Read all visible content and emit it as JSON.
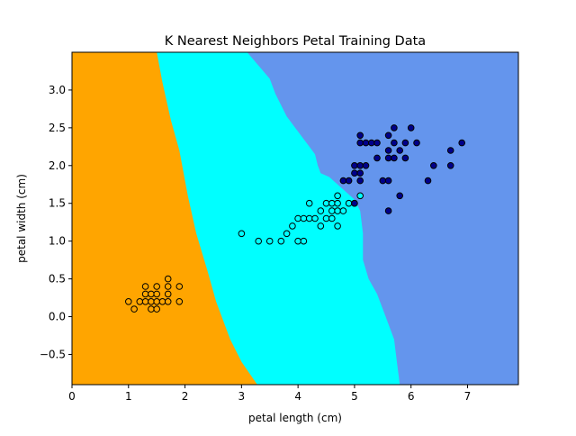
{
  "chart_data": {
    "type": "scatter",
    "title": "K Nearest Neighbors Petal Training Data",
    "xlabel": "petal length (cm)",
    "ylabel": "petal width (cm)",
    "xlim": [
      0,
      7.9
    ],
    "ylim": [
      -0.9,
      3.5
    ],
    "xticks": [
      0,
      1,
      2,
      3,
      4,
      5,
      6,
      7
    ],
    "yticks": [
      -0.5,
      0.0,
      0.5,
      1.0,
      1.5,
      2.0,
      2.5,
      3.0
    ],
    "ytick_labels": [
      "−0.5",
      "0.0",
      "0.5",
      "1.0",
      "1.5",
      "2.0",
      "2.5",
      "3.0"
    ],
    "grid": false,
    "legend": "none",
    "decision_regions": [
      {
        "class": 0,
        "color": "#FFA500",
        "boundary_to_next": [
          [
            1.5,
            3.5
          ],
          [
            1.6,
            3.1
          ],
          [
            1.75,
            2.6
          ],
          [
            1.9,
            2.2
          ],
          [
            2.05,
            1.6
          ],
          [
            2.2,
            1.1
          ],
          [
            2.4,
            0.6
          ],
          [
            2.55,
            0.2
          ],
          [
            2.8,
            -0.3
          ],
          [
            3.0,
            -0.6
          ],
          [
            3.28,
            -0.9
          ]
        ]
      },
      {
        "class": 1,
        "color": "#00FFFF",
        "boundary_to_next": [
          [
            3.1,
            3.5
          ],
          [
            3.5,
            3.15
          ],
          [
            3.6,
            2.95
          ],
          [
            3.8,
            2.65
          ],
          [
            3.95,
            2.5
          ],
          [
            4.1,
            2.35
          ],
          [
            4.2,
            2.25
          ],
          [
            4.3,
            2.15
          ],
          [
            4.35,
            2.0
          ],
          [
            4.4,
            1.9
          ],
          [
            4.55,
            1.85
          ],
          [
            4.7,
            1.75
          ],
          [
            4.85,
            1.65
          ],
          [
            5.0,
            1.55
          ],
          [
            5.1,
            1.4
          ],
          [
            5.15,
            1.1
          ],
          [
            5.15,
            0.75
          ],
          [
            5.25,
            0.5
          ],
          [
            5.4,
            0.3
          ],
          [
            5.55,
            0.0
          ],
          [
            5.7,
            -0.3
          ],
          [
            5.75,
            -0.6
          ],
          [
            5.8,
            -0.9
          ]
        ]
      },
      {
        "class": 2,
        "color": "#6495ED"
      }
    ],
    "series": [
      {
        "class": 0,
        "color": "#FFA500",
        "points": [
          [
            1.0,
            0.2
          ],
          [
            1.1,
            0.1
          ],
          [
            1.2,
            0.2
          ],
          [
            1.3,
            0.2
          ],
          [
            1.3,
            0.3
          ],
          [
            1.3,
            0.4
          ],
          [
            1.4,
            0.1
          ],
          [
            1.4,
            0.2
          ],
          [
            1.4,
            0.3
          ],
          [
            1.5,
            0.1
          ],
          [
            1.5,
            0.2
          ],
          [
            1.5,
            0.3
          ],
          [
            1.5,
            0.4
          ],
          [
            1.6,
            0.2
          ],
          [
            1.7,
            0.2
          ],
          [
            1.7,
            0.3
          ],
          [
            1.7,
            0.4
          ],
          [
            1.7,
            0.5
          ],
          [
            1.9,
            0.2
          ],
          [
            1.9,
            0.4
          ]
        ]
      },
      {
        "class": 1,
        "color": "#00FFFF",
        "points": [
          [
            3.0,
            1.1
          ],
          [
            3.3,
            1.0
          ],
          [
            3.5,
            1.0
          ],
          [
            3.7,
            1.0
          ],
          [
            3.8,
            1.1
          ],
          [
            3.9,
            1.2
          ],
          [
            4.0,
            1.0
          ],
          [
            4.0,
            1.3
          ],
          [
            4.1,
            1.0
          ],
          [
            4.1,
            1.3
          ],
          [
            4.2,
            1.3
          ],
          [
            4.2,
            1.5
          ],
          [
            4.3,
            1.3
          ],
          [
            4.4,
            1.2
          ],
          [
            4.4,
            1.4
          ],
          [
            4.5,
            1.3
          ],
          [
            4.5,
            1.5
          ],
          [
            4.6,
            1.3
          ],
          [
            4.6,
            1.4
          ],
          [
            4.6,
            1.5
          ],
          [
            4.7,
            1.2
          ],
          [
            4.7,
            1.4
          ],
          [
            4.7,
            1.5
          ],
          [
            4.7,
            1.6
          ],
          [
            4.8,
            1.4
          ],
          [
            4.9,
            1.5
          ],
          [
            5.0,
            1.5
          ],
          [
            5.1,
            1.6
          ]
        ]
      },
      {
        "class": 2,
        "color": "#00008B",
        "points": [
          [
            4.8,
            1.8
          ],
          [
            4.9,
            1.8
          ],
          [
            5.0,
            1.5
          ],
          [
            5.0,
            1.9
          ],
          [
            5.0,
            2.0
          ],
          [
            5.1,
            1.8
          ],
          [
            5.1,
            1.9
          ],
          [
            5.1,
            2.0
          ],
          [
            5.1,
            2.3
          ],
          [
            5.1,
            2.4
          ],
          [
            5.2,
            2.0
          ],
          [
            5.2,
            2.3
          ],
          [
            5.3,
            2.3
          ],
          [
            5.4,
            2.1
          ],
          [
            5.4,
            2.3
          ],
          [
            5.5,
            1.8
          ],
          [
            5.6,
            1.4
          ],
          [
            5.6,
            1.8
          ],
          [
            5.6,
            2.1
          ],
          [
            5.6,
            2.2
          ],
          [
            5.6,
            2.4
          ],
          [
            5.7,
            2.1
          ],
          [
            5.7,
            2.3
          ],
          [
            5.7,
            2.5
          ],
          [
            5.8,
            1.6
          ],
          [
            5.8,
            2.2
          ],
          [
            5.9,
            2.1
          ],
          [
            5.9,
            2.3
          ],
          [
            6.0,
            2.5
          ],
          [
            6.1,
            2.3
          ],
          [
            6.3,
            1.8
          ],
          [
            6.4,
            2.0
          ],
          [
            6.7,
            2.0
          ],
          [
            6.7,
            2.2
          ],
          [
            6.9,
            2.3
          ]
        ]
      }
    ]
  }
}
